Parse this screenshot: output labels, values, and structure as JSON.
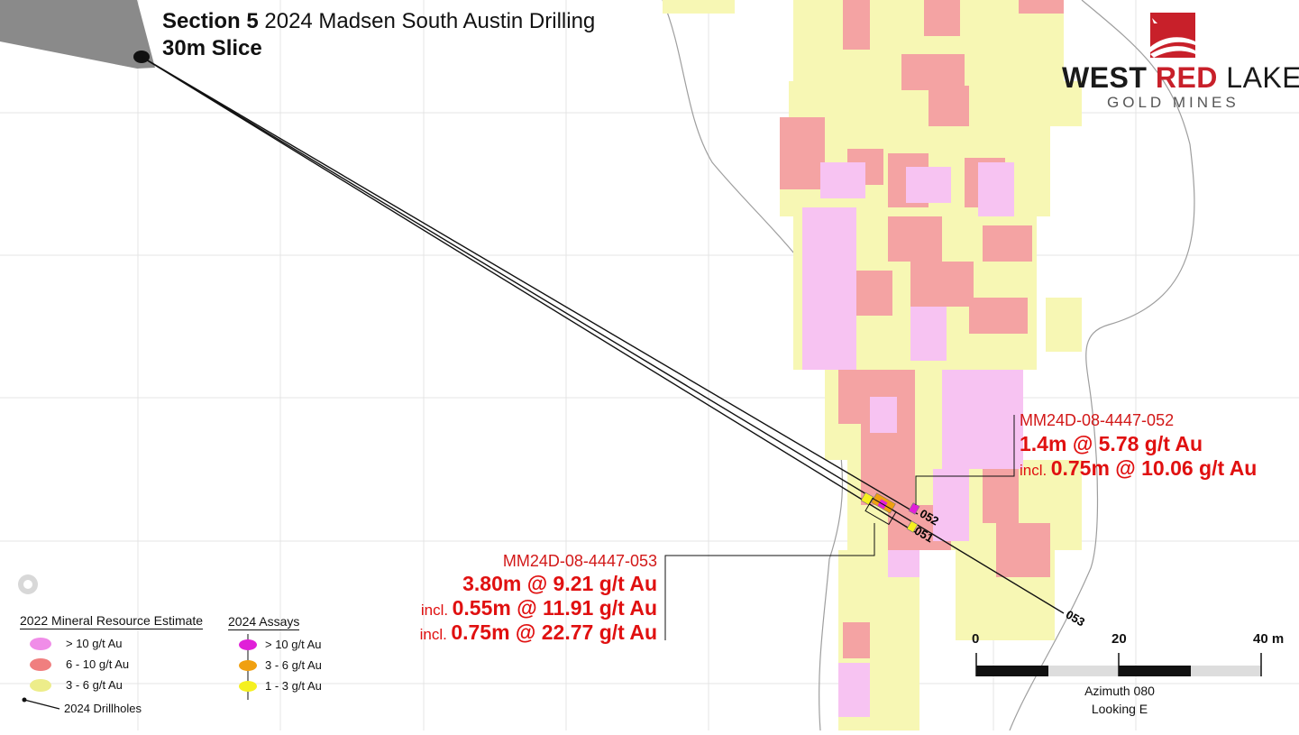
{
  "title": {
    "section": "Section 5",
    "subtitle": "2024 Madsen South Austin Drilling",
    "slice": "30m Slice"
  },
  "logo": {
    "word1": "WEST",
    "word2": "RED",
    "word3": "LAKE",
    "sub": "GOLD MINES",
    "brand_red": "#c8202a"
  },
  "intercepts": {
    "hole_052": {
      "name": "MM24D-08-4447-052",
      "main": "1.4m @ 5.78 g/t Au",
      "incl_prefix": "incl.",
      "incl_value": "0.75m @ 10.06 g/t Au"
    },
    "hole_053": {
      "name": "MM24D-08-4447-053",
      "main": "3.80m @ 9.21 g/t Au",
      "incl1_prefix": "incl.",
      "incl1_value": "0.55m @ 11.91 g/t Au",
      "incl2_prefix": "incl.",
      "incl2_value": "0.75m @ 22.77 g/t Au"
    }
  },
  "hole_labels": {
    "h052": "052",
    "h051": "051",
    "h053": "053"
  },
  "legend": {
    "mre_title": "2022 Mineral Resource Estimate",
    "mre_items": [
      {
        "label": "> 10 g/t Au",
        "color": "#f08de8"
      },
      {
        "label": "6 - 10 g/t Au",
        "color": "#f07f7f"
      },
      {
        "label": "3 - 6 g/t Au",
        "color": "#eded8a"
      }
    ],
    "drillholes_label": "2024 Drillholes",
    "assay_title": "2024 Assays",
    "assay_items": [
      {
        "label": "> 10 g/t Au",
        "color": "#e020d8"
      },
      {
        "label": "3 - 6 g/t Au",
        "color": "#f0a010"
      },
      {
        "label": "1 - 3 g/t Au",
        "color": "#f5f020"
      }
    ]
  },
  "scale": {
    "ticks": [
      "0",
      "20",
      "40 m"
    ],
    "azimuth": "Azimuth 080",
    "looking": "Looking E"
  },
  "colors": {
    "mre_gt10": "#f7c3f2",
    "mre_6_10": "#f4a3a3",
    "mre_3_6": "#f7f7b4",
    "drift": "#8a8a8a"
  }
}
